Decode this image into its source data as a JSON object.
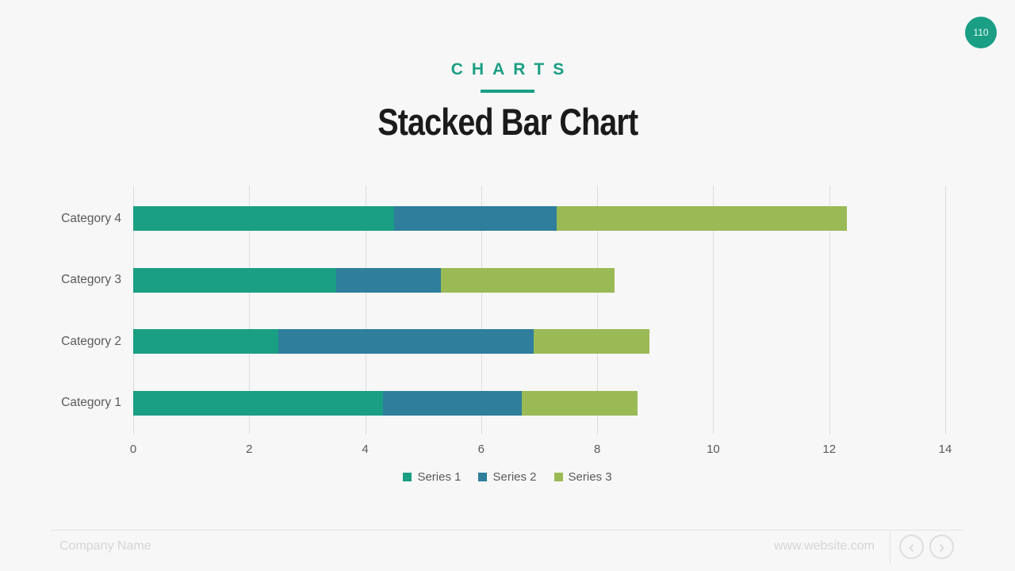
{
  "slide": {
    "page_number": "110",
    "header": {
      "eyebrow": "CHARTS",
      "title": "Stacked Bar Chart"
    },
    "footer": {
      "company": "Company Name",
      "website": "www.website.com",
      "prev_glyph": "‹",
      "next_glyph": "›"
    }
  },
  "colors": {
    "accent_teal": "#1A9E84",
    "series2_blue": "#2E7E9C",
    "series3_green": "#9ABA56",
    "title_text": "#1b1b1b",
    "label_gray": "#5a5a5a",
    "gridline": "#dcdcdc",
    "background": "#f7f7f7"
  },
  "chart_data": {
    "type": "bar",
    "orientation": "horizontal",
    "stacked": true,
    "title": "Stacked Bar Chart",
    "categories": [
      "Category 1",
      "Category 2",
      "Category 3",
      "Category 4"
    ],
    "series": [
      {
        "name": "Series 1",
        "color": "#1A9E84",
        "values": [
          4.3,
          2.5,
          3.5,
          4.5
        ]
      },
      {
        "name": "Series 2",
        "color": "#2E7E9C",
        "values": [
          2.4,
          4.4,
          1.8,
          2.8
        ]
      },
      {
        "name": "Series 3",
        "color": "#9ABA56",
        "values": [
          2.0,
          2.0,
          3.0,
          5.0
        ]
      }
    ],
    "totals": [
      8.7,
      8.9,
      8.3,
      12.3
    ],
    "xlabel": "",
    "ylabel": "",
    "xlim": [
      0,
      14
    ],
    "xticks": [
      0,
      2,
      4,
      6,
      8,
      10,
      12,
      14
    ],
    "grid": "vertical",
    "legend_position": "bottom-center"
  }
}
